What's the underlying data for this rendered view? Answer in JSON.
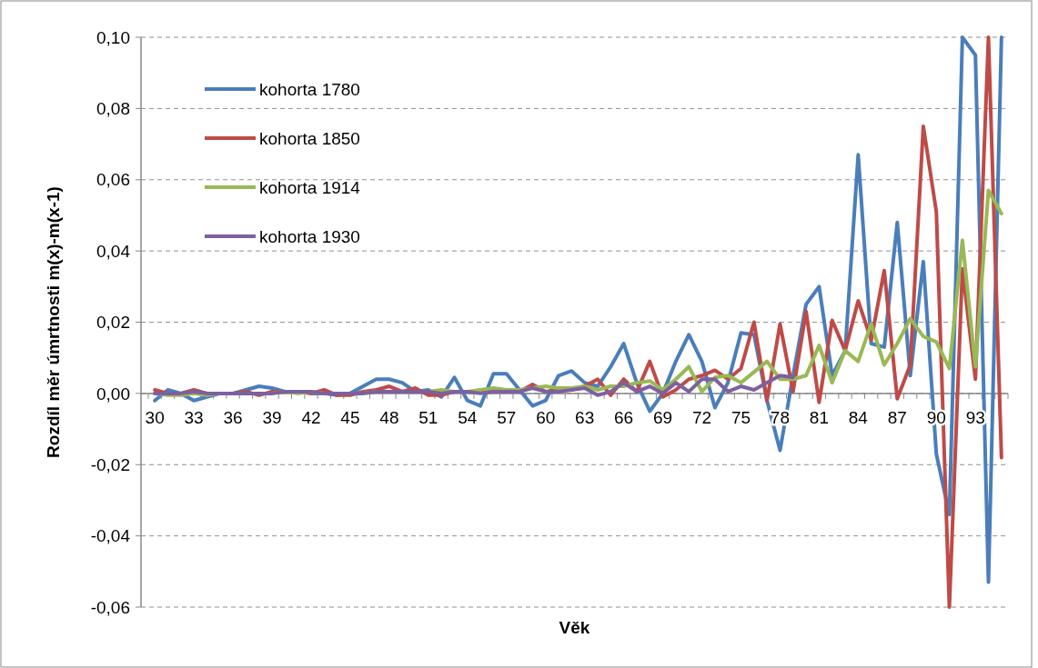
{
  "chart_data": {
    "type": "line",
    "xlabel": "Věk",
    "ylabel": "Rozdíl měr úmrtnosti m(x)-m(x-1)",
    "categories": [
      "30",
      null,
      null,
      "33",
      null,
      null,
      "36",
      null,
      null,
      "39",
      null,
      null,
      "42",
      null,
      null,
      "45",
      null,
      null,
      "48",
      null,
      null,
      "51",
      null,
      null,
      "54",
      null,
      null,
      "57",
      null,
      null,
      "60",
      null,
      null,
      "63",
      null,
      null,
      "66",
      null,
      null,
      "69",
      null,
      null,
      "72",
      null,
      null,
      "75",
      null,
      null,
      "78",
      null,
      null,
      "81",
      null,
      null,
      "84",
      null,
      null,
      "87",
      null,
      null,
      "90",
      null,
      null,
      "93",
      null,
      null
    ],
    "series": [
      {
        "name": "kohorta 1780",
        "color": "#4a7ebb",
        "values": [
          -0.002,
          0.001,
          0,
          -0.002,
          -0.001,
          0,
          0,
          0.001,
          0.002,
          0.0015,
          0.0005,
          0.0005,
          0,
          0,
          -0.0005,
          0,
          0.002,
          0.004,
          0.004,
          0.003,
          0.0005,
          0.001,
          -0.001,
          0.0045,
          -0.002,
          -0.0035,
          0.0055,
          0.0055,
          0.001,
          -0.0035,
          -0.002,
          0.005,
          0.0063,
          0.003,
          0.002,
          0.0075,
          0.014,
          0.003,
          -0.005,
          0,
          0.009,
          0.0165,
          0.009,
          -0.004,
          0.003,
          0.017,
          0.0165,
          -0.002,
          -0.016,
          0.005,
          0.025,
          0.03,
          0.005,
          0.012,
          0.067,
          0.014,
          0.013,
          0.048,
          0.005,
          0.037,
          -0.017,
          -0.034,
          0.1,
          0.095,
          -0.053,
          0.1
        ]
      },
      {
        "name": "kohorta 1850",
        "color": "#be4b48",
        "values": [
          0.001,
          0,
          0,
          0.001,
          0,
          0,
          0,
          0.0005,
          -0.0005,
          0.0005,
          0.0005,
          0.0005,
          0,
          0.001,
          -0.0005,
          -0.0005,
          0.0005,
          0.001,
          0.002,
          0.0005,
          0.0015,
          -0.0005,
          -0.0005,
          0.0005,
          0.0005,
          0.0005,
          0.0005,
          0.0005,
          0.0005,
          0.0025,
          0.0005,
          0.001,
          0.001,
          0.002,
          0.004,
          -0.0005,
          0.004,
          0.0005,
          0.009,
          -0.001,
          0.001,
          0.004,
          0.005,
          0.0065,
          0.004,
          0.007,
          0.02,
          -0.002,
          0.0195,
          0.0005,
          0.023,
          -0.0025,
          0.0205,
          0.012,
          0.026,
          0.015,
          0.0345,
          -0.0015,
          0.008,
          0.075,
          0.051,
          -0.06,
          0.035,
          0.004,
          0.1,
          -0.018
        ]
      },
      {
        "name": "kohorta 1914",
        "color": "#98b954",
        "values": [
          0,
          -0.0005,
          -0.0005,
          0,
          -0.0005,
          0,
          0,
          0,
          0,
          0,
          0.0005,
          0,
          0.0005,
          0,
          0,
          0,
          0,
          0.0005,
          0.0005,
          0.0005,
          0.0005,
          0.0005,
          0.001,
          0.0005,
          0.0005,
          0.001,
          0.0015,
          0.001,
          0.001,
          0.0015,
          0.002,
          0.0015,
          0.0015,
          0.002,
          0.001,
          0.002,
          0.002,
          0.003,
          0.0035,
          0.001,
          0.004,
          0.0075,
          0.0005,
          0.0045,
          0.005,
          0.003,
          0.006,
          0.009,
          0.004,
          0.004,
          0.005,
          0.0135,
          0.003,
          0.012,
          0.009,
          0.0195,
          0.008,
          0.014,
          0.021,
          0.016,
          0.0145,
          0.007,
          0.043,
          0.0075,
          0.057,
          0.0505
        ]
      },
      {
        "name": "kohorta 1930",
        "color": "#7d60a0",
        "values": [
          0,
          0,
          0,
          0.0005,
          0,
          0,
          0,
          0,
          0,
          0,
          0.0005,
          0.0005,
          0.0005,
          0,
          0,
          0,
          0,
          0.0005,
          0.0005,
          0.0005,
          0.0005,
          0.0005,
          0,
          0.0005,
          0.0005,
          0,
          0.0005,
          0.0005,
          0.0005,
          0.0015,
          0.0005,
          0.0005,
          0.001,
          0.0015,
          -0.0005,
          0.0005,
          0.003,
          0.0005,
          0.002,
          0,
          0.003,
          0.0005,
          0.004,
          0.004,
          0.0005,
          0.002,
          0.001,
          0.003,
          0.005,
          0.0045,
          null,
          null,
          null,
          null,
          null,
          null,
          null,
          null,
          null,
          null,
          null,
          null,
          null,
          null,
          null,
          null
        ]
      }
    ],
    "ylim": [
      -0.06,
      0.1
    ],
    "yticks": [
      {
        "value": -0.06,
        "label": "-0,06"
      },
      {
        "value": -0.04,
        "label": "-0,04"
      },
      {
        "value": -0.02,
        "label": "-0,02"
      },
      {
        "value": 0,
        "label": "0,00"
      },
      {
        "value": 0.02,
        "label": "0,02"
      },
      {
        "value": 0.04,
        "label": "0,04"
      },
      {
        "value": 0.06,
        "label": "0,06"
      },
      {
        "value": 0.08,
        "label": "0,08"
      },
      {
        "value": 0.1,
        "label": "0,10"
      }
    ],
    "grid": "y",
    "legend": "top left",
    "marker": "none",
    "line_style": "solid"
  }
}
